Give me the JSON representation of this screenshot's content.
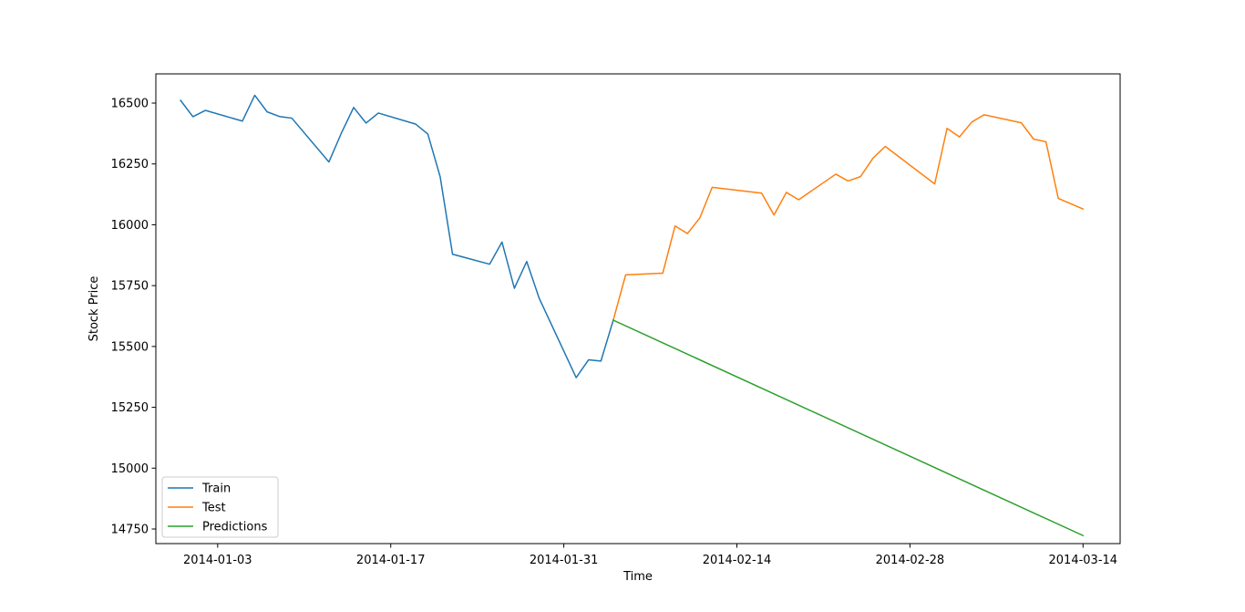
{
  "chart_data": {
    "type": "line",
    "title": "",
    "xlabel": "Time",
    "ylabel": "Stock Price",
    "x_axis_type": "date",
    "xlim": [
      "2013-12-29",
      "2014-03-17"
    ],
    "ylim": [
      14690,
      16620
    ],
    "grid": false,
    "legend_position": "lower-left",
    "x_ticks": [
      "2014-01-03",
      "2014-01-17",
      "2014-01-31",
      "2014-02-14",
      "2014-02-28",
      "2014-03-14"
    ],
    "y_ticks": [
      14750,
      15000,
      15250,
      15500,
      15750,
      16000,
      16250,
      16500
    ],
    "series": [
      {
        "name": "Train",
        "color": "#1f77b4",
        "points": [
          [
            "2013-12-31",
            16511
          ],
          [
            "2014-01-01",
            16444
          ],
          [
            "2014-01-02",
            16470
          ],
          [
            "2014-01-05",
            16426
          ],
          [
            "2014-01-06",
            16532
          ],
          [
            "2014-01-07",
            16464
          ],
          [
            "2014-01-08",
            16445
          ],
          [
            "2014-01-09",
            16438
          ],
          [
            "2014-01-12",
            16258
          ],
          [
            "2014-01-13",
            16376
          ],
          [
            "2014-01-14",
            16482
          ],
          [
            "2014-01-15",
            16418
          ],
          [
            "2014-01-16",
            16459
          ],
          [
            "2014-01-19",
            16414
          ],
          [
            "2014-01-20",
            16373
          ],
          [
            "2014-01-21",
            16197
          ],
          [
            "2014-01-22",
            15879
          ],
          [
            "2014-01-25",
            15838
          ],
          [
            "2014-01-26",
            15929
          ],
          [
            "2014-01-27",
            15739
          ],
          [
            "2014-01-28",
            15849
          ],
          [
            "2014-01-29",
            15699
          ],
          [
            "2014-02-01",
            15372
          ],
          [
            "2014-02-02",
            15445
          ],
          [
            "2014-02-03",
            15440
          ],
          [
            "2014-02-04",
            15608
          ]
        ]
      },
      {
        "name": "Test",
        "color": "#ff7f0e",
        "points": [
          [
            "2014-02-04",
            15608
          ],
          [
            "2014-02-05",
            15794
          ],
          [
            "2014-02-08",
            15801
          ],
          [
            "2014-02-09",
            15995
          ],
          [
            "2014-02-10",
            15964
          ],
          [
            "2014-02-11",
            16028
          ],
          [
            "2014-02-12",
            16154
          ],
          [
            "2014-02-16",
            16130
          ],
          [
            "2014-02-17",
            16040
          ],
          [
            "2014-02-18",
            16133
          ],
          [
            "2014-02-19",
            16103
          ],
          [
            "2014-02-22",
            16208
          ],
          [
            "2014-02-23",
            16180
          ],
          [
            "2014-02-24",
            16198
          ],
          [
            "2014-02-25",
            16273
          ],
          [
            "2014-02-26",
            16322
          ],
          [
            "2014-03-02",
            16168
          ],
          [
            "2014-03-03",
            16396
          ],
          [
            "2014-03-04",
            16361
          ],
          [
            "2014-03-05",
            16422
          ],
          [
            "2014-03-06",
            16452
          ],
          [
            "2014-03-09",
            16419
          ],
          [
            "2014-03-10",
            16352
          ],
          [
            "2014-03-11",
            16341
          ],
          [
            "2014-03-12",
            16108
          ],
          [
            "2014-03-14",
            16065
          ]
        ]
      },
      {
        "name": "Predictions",
        "color": "#2ca02c",
        "points": [
          [
            "2014-02-04",
            15608
          ],
          [
            "2014-03-14",
            14723
          ]
        ]
      }
    ]
  }
}
